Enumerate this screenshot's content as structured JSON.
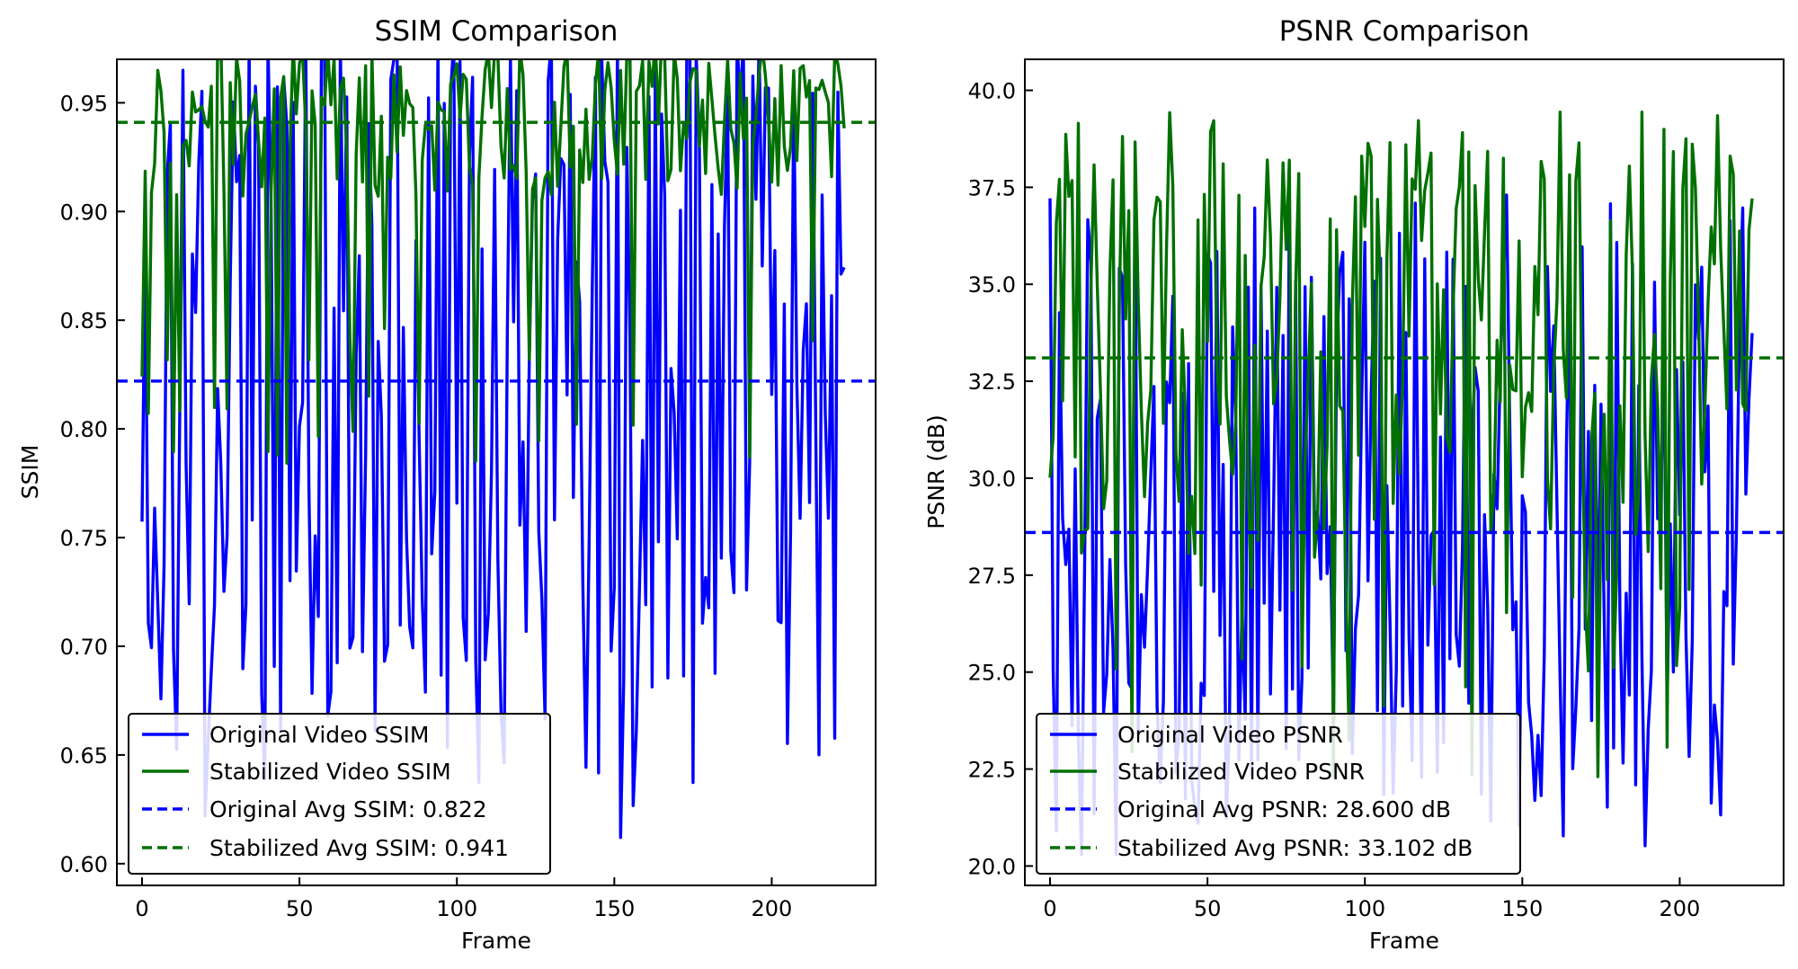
{
  "chart_data": [
    {
      "type": "line",
      "title": "SSIM Comparison",
      "xlabel": "Frame",
      "ylabel": "SSIM",
      "xlim": [
        -8,
        233
      ],
      "ylim": [
        0.59,
        0.97
      ],
      "xticks": [
        0,
        50,
        100,
        150,
        200
      ],
      "yticks": [
        0.6,
        0.65,
        0.7,
        0.75,
        0.8,
        0.85,
        0.9,
        0.95
      ],
      "grid": false,
      "legend_position": "lower-left",
      "frames": [
        0,
        223
      ],
      "original": {
        "name": "Original Video SSIM",
        "color": "#0000ff",
        "y_range": [
          0.606,
          0.978
        ],
        "values_summary": "highly oscillating, frame-to-frame"
      },
      "stabilized": {
        "name": "Stabilized Video SSIM",
        "color": "#007000",
        "y_range": [
          0.78,
          0.98
        ],
        "values_summary": "mostly between 0.90 and 0.98"
      },
      "averages": [
        {
          "name": "Original Avg SSIM: 0.822",
          "value": 0.822,
          "color": "#0000ff"
        },
        {
          "name": "Stabilized Avg SSIM: 0.941",
          "value": 0.941,
          "color": "#007000"
        }
      ]
    },
    {
      "type": "line",
      "title": "PSNR Comparison",
      "xlabel": "Frame",
      "ylabel": "PSNR (dB)",
      "xlim": [
        -8,
        233
      ],
      "ylim": [
        19.5,
        40.8
      ],
      "xticks": [
        0,
        50,
        100,
        150,
        200
      ],
      "yticks": [
        20.0,
        22.5,
        25.0,
        27.5,
        30.0,
        32.5,
        35.0,
        37.5,
        40.0
      ],
      "grid": false,
      "legend_position": "lower-left",
      "frames": [
        0,
        223
      ],
      "original": {
        "name": "Original Video PSNR",
        "color": "#0000ff",
        "y_range": [
          20.3,
          37.3
        ],
        "values_summary": "highly oscillating, frame-to-frame"
      },
      "stabilized": {
        "name": "Stabilized Video PSNR",
        "color": "#007000",
        "y_range": [
          22.0,
          39.7
        ],
        "values_summary": "highly oscillating, mostly 27 to 38"
      },
      "averages": [
        {
          "name": "Original Avg PSNR: 28.600 dB",
          "value": 28.6,
          "color": "#0000ff"
        },
        {
          "name": "Stabilized Avg PSNR: 33.102 dB",
          "value": 33.102,
          "color": "#007000"
        }
      ]
    }
  ]
}
